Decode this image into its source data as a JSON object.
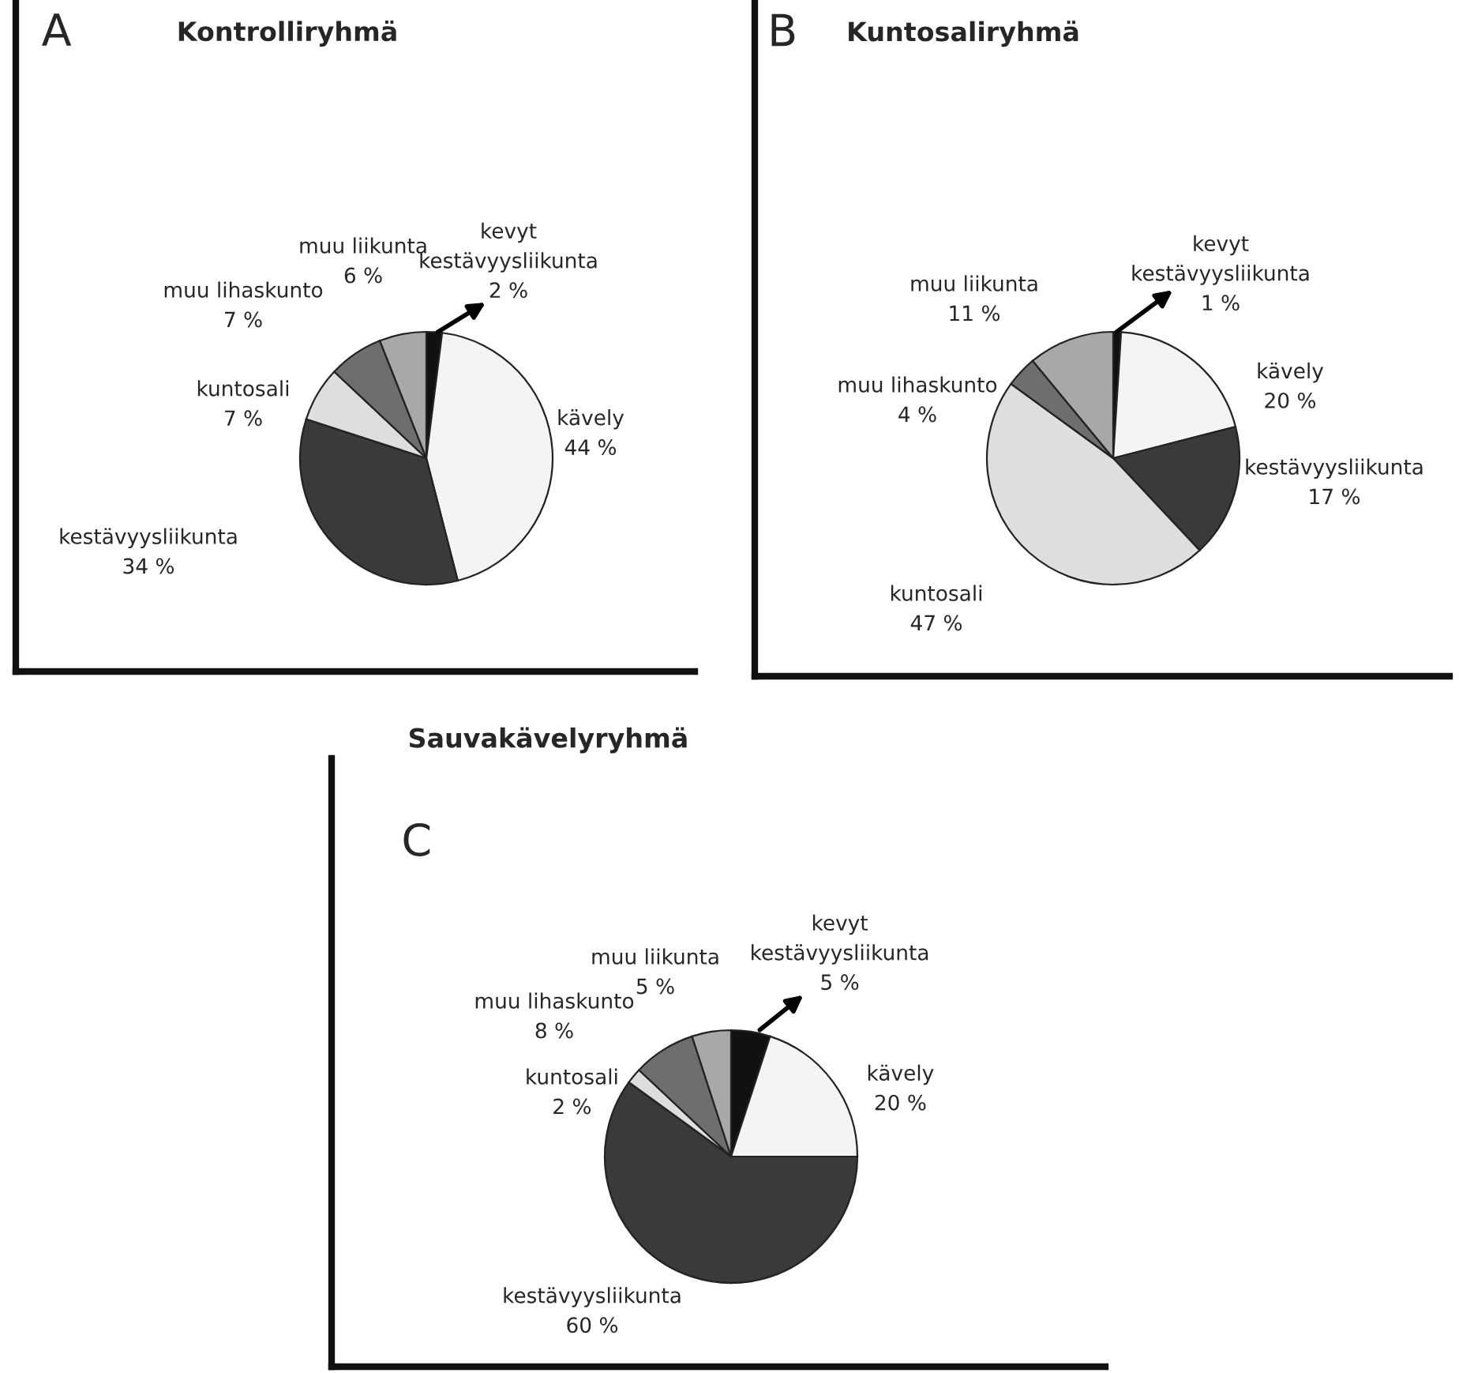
{
  "chart_data": [
    {
      "type": "pie",
      "title": "Kontrolliryhmä",
      "annotations": [
        "A"
      ],
      "categories": [
        "kevyt\nkestävyysliikunta",
        "kävely",
        "kestävyysliikunta",
        "kuntosali",
        "muu lihaskunto",
        "muu liikunta"
      ],
      "values": [
        2,
        44,
        34,
        7,
        7,
        6
      ],
      "value_labels": [
        "2 %",
        "44 %",
        "34 %",
        "7 %",
        "7 %",
        "6 %"
      ],
      "colors": [
        "#111111",
        "#f4f4f4",
        "#3a3a3a",
        "#dedede",
        "#6e6e6e",
        "#a8a8a8"
      ]
    },
    {
      "type": "pie",
      "title": "Kuntosaliryhmä",
      "annotations": [
        "B"
      ],
      "categories": [
        "kevyt\nkestävyysliikunta",
        "kävely",
        "kestävyysliikunta",
        "kuntosali",
        "muu lihaskunto",
        "muu liikunta"
      ],
      "values": [
        1,
        20,
        17,
        47,
        4,
        11
      ],
      "value_labels": [
        "1 %",
        "20 %",
        "17 %",
        "47 %",
        "4 %",
        "11 %"
      ],
      "colors": [
        "#111111",
        "#f4f4f4",
        "#3a3a3a",
        "#dedede",
        "#6e6e6e",
        "#a8a8a8"
      ]
    },
    {
      "type": "pie",
      "title": "Sauvakävelyryhmä",
      "annotations": [
        "C"
      ],
      "categories": [
        "kevyt\nkestävyysliikunta",
        "kävely",
        "kestävyysliikunta",
        "kuntosali",
        "muu lihaskunto",
        "muu liikunta"
      ],
      "values": [
        5,
        20,
        60,
        2,
        8,
        5
      ],
      "value_labels": [
        "5 %",
        "20 %",
        "60 %",
        "2 %",
        "8 %",
        "5 %"
      ],
      "colors": [
        "#111111",
        "#f4f4f4",
        "#3a3a3a",
        "#dedede",
        "#6e6e6e",
        "#a8a8a8"
      ]
    }
  ]
}
